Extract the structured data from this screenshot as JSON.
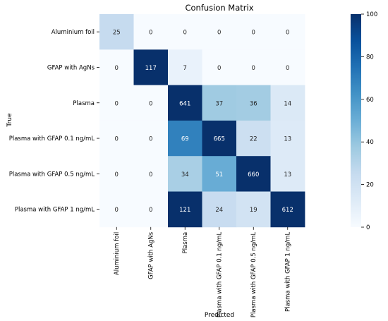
{
  "chart_data": {
    "type": "heatmap",
    "title": "Confusion Matrix",
    "xlabel": "Predicted",
    "ylabel": "True",
    "x_categories": [
      "Aluminium foil",
      "GFAP with AgNs",
      "Plasma",
      "Plasma with GFAP 0.1 ng/mL",
      "Plasma with GFAP 0.5 ng/mL",
      "Plasma with GFAP 1 ng/mL"
    ],
    "y_categories": [
      "Aluminium foil",
      "GFAP with AgNs",
      "Plasma",
      "Plasma with GFAP 0.1 ng/mL",
      "Plasma with GFAP 0.5 ng/mL",
      "Plasma with GFAP 1 ng/mL"
    ],
    "values": [
      [
        25,
        0,
        0,
        0,
        0,
        0
      ],
      [
        0,
        117,
        7,
        0,
        0,
        0
      ],
      [
        0,
        0,
        641,
        37,
        36,
        14
      ],
      [
        0,
        0,
        69,
        665,
        22,
        13
      ],
      [
        0,
        0,
        34,
        51,
        660,
        13
      ],
      [
        0,
        0,
        121,
        24,
        19,
        612
      ]
    ],
    "colorbar": {
      "vmin": 0,
      "vmax": 100,
      "ticks": [
        0,
        20,
        40,
        60,
        80,
        100
      ],
      "colormap": "Blues"
    }
  }
}
